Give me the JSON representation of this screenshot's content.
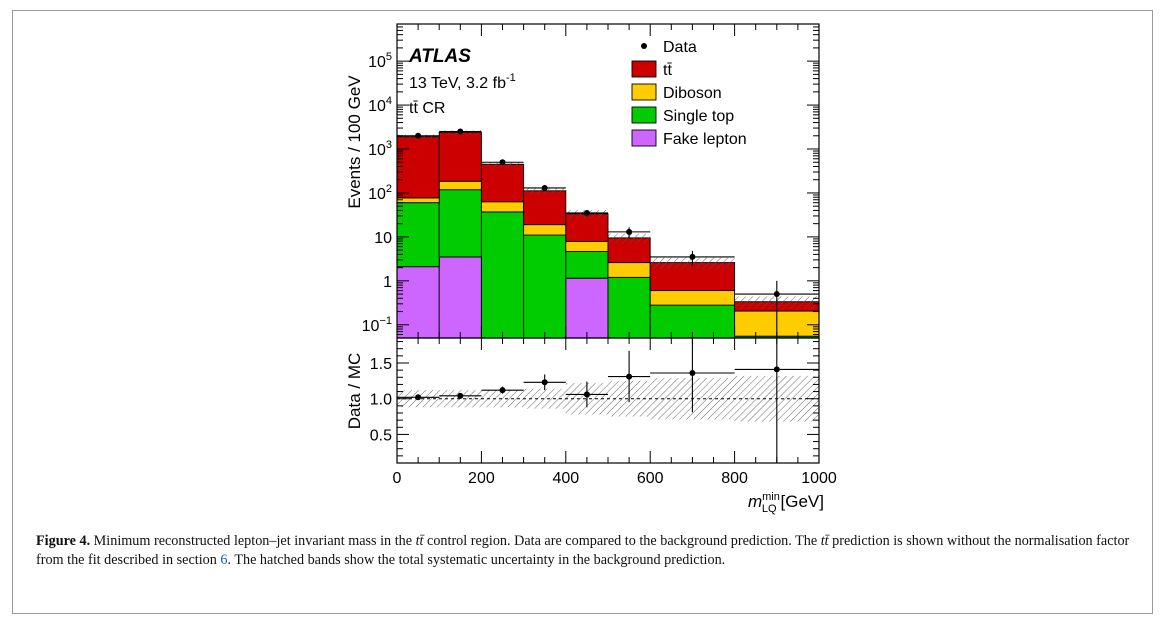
{
  "figure": {
    "caption_label": "Figure 4.",
    "caption_part1": " Minimum reconstructed lepton–jet invariant mass in the ",
    "caption_math1": "tt̄",
    "caption_part2": " control region. Data are compared to the background prediction. The ",
    "caption_math2": "tt̄",
    "caption_part3": " prediction is shown without the normalisation factor from the fit described in section ",
    "caption_ref": "6",
    "caption_part4": ". The hatched bands show the total systematic uncertainty in the background prediction."
  },
  "chart_data": [
    {
      "type": "bar",
      "stacked": true,
      "scale": "log",
      "ylabel": "Events / 100 GeV",
      "ylim": [
        0.05,
        700000
      ],
      "annotations": {
        "experiment": "ATLAS",
        "energy_lumi": "13 TeV, 3.2 fb",
        "lumi_exponent": "-1",
        "region": "tt̄ CR"
      },
      "y_ticks": [
        {
          "value": 0.1,
          "base": "10",
          "exp": "−1"
        },
        {
          "value": 1,
          "label": "1"
        },
        {
          "value": 10,
          "label": "10"
        },
        {
          "value": 100,
          "base": "10",
          "exp": "2"
        },
        {
          "value": 1000,
          "base": "10",
          "exp": "3"
        },
        {
          "value": 10000,
          "base": "10",
          "exp": "4"
        },
        {
          "value": 100000,
          "base": "10",
          "exp": "5"
        }
      ],
      "bin_edges": [
        0,
        100,
        200,
        300,
        400,
        500,
        600,
        800,
        1000
      ],
      "series": [
        {
          "name": "Fake lepton",
          "color": "#cc66ff",
          "values": [
            2.1,
            3.5,
            0,
            0,
            1.15,
            0,
            0,
            0
          ]
        },
        {
          "name": "Single top",
          "color": "#00cc00",
          "values": [
            58,
            115,
            37,
            11,
            3.5,
            1.2,
            0.28,
            0.055
          ]
        },
        {
          "name": "Diboson",
          "color": "#ffcc00",
          "values": [
            17,
            66,
            26,
            8,
            3.2,
            1.4,
            0.32,
            0.15
          ]
        },
        {
          "name": "tt̄",
          "color": "#cc0000",
          "values": [
            1823,
            2216,
            387,
            93,
            25.7,
            6.9,
            2.0,
            0.13
          ]
        }
      ],
      "data": {
        "name": "Data",
        "x": [
          50,
          150,
          250,
          350,
          450,
          550,
          700,
          900
        ],
        "y": [
          2000,
          2500,
          500,
          130,
          35,
          13,
          3.5,
          0.5
        ]
      },
      "legend": {
        "position": "top-right",
        "items": [
          "Data",
          "tt̄",
          "Diboson",
          "Single top",
          "Fake lepton"
        ]
      }
    },
    {
      "type": "scatter",
      "ylabel": "Data / MC",
      "xlabel": "m",
      "xlabel_sup": "min",
      "xlabel_sub": "LQ",
      "xlabel_unit": "[GeV]",
      "ylim": [
        0.1,
        1.85
      ],
      "xlim": [
        0,
        1000
      ],
      "y_ticks": [
        "0.5",
        "1.0",
        "1.5"
      ],
      "x_ticks": [
        "0",
        "200",
        "400",
        "600",
        "800",
        "1000"
      ],
      "reference_line": 1.0,
      "points": [
        {
          "x": 50,
          "xerr": 50,
          "y": 1.02,
          "yerr": 0.02
        },
        {
          "x": 150,
          "xerr": 50,
          "y": 1.04,
          "yerr": 0.02
        },
        {
          "x": 250,
          "xerr": 50,
          "y": 1.12,
          "yerr": 0.05
        },
        {
          "x": 350,
          "xerr": 50,
          "y": 1.23,
          "yerr": 0.11
        },
        {
          "x": 450,
          "xerr": 50,
          "y": 1.06,
          "yerr": 0.18
        },
        {
          "x": 550,
          "xerr": 50,
          "y": 1.31,
          "yerr": 0.36
        },
        {
          "x": 700,
          "xerr": 100,
          "y": 1.36,
          "yerr": 0.55
        },
        {
          "x": 900,
          "xerr": 100,
          "y": 1.41,
          "yerr": 1.41
        }
      ],
      "syst_band": [
        0.12,
        0.12,
        0.12,
        0.14,
        0.22,
        0.25,
        0.29,
        0.32
      ]
    }
  ]
}
